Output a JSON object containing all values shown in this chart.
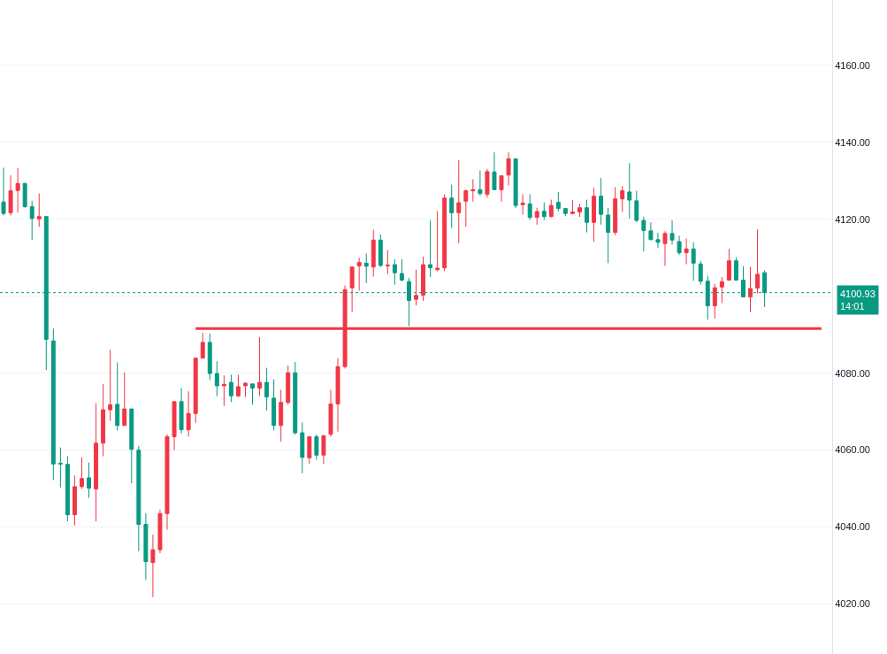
{
  "chart_data": {
    "type": "candlestick",
    "categories": [
      null,
      null,
      null,
      null,
      null,
      null,
      null,
      null,
      null,
      null,
      null,
      null,
      null,
      null,
      null,
      null,
      null,
      null,
      null,
      null,
      null,
      null,
      null,
      null,
      null,
      null,
      null,
      null,
      null,
      null,
      null,
      null,
      null,
      null,
      null,
      null,
      null,
      null,
      null,
      null,
      null,
      null,
      null,
      null,
      null,
      null,
      null,
      null,
      null,
      null,
      null,
      null,
      null,
      null,
      null,
      null,
      null,
      null,
      null,
      null,
      null,
      null,
      null,
      null,
      null,
      null,
      null,
      null,
      null,
      null,
      null,
      null,
      null,
      null,
      null,
      null,
      null,
      null,
      null,
      null,
      null,
      null,
      null,
      null,
      null,
      null,
      null,
      null,
      null,
      null,
      null,
      null,
      null,
      null,
      null,
      null,
      null,
      null,
      null,
      null,
      null,
      null,
      null,
      null,
      null,
      null,
      null,
      null,
      null,
      null,
      null,
      null,
      null,
      null,
      null,
      null,
      null
    ],
    "ohlc": [
      [
        4124.5,
        4133.4,
        4121.0,
        4121.5
      ],
      [
        4121.7,
        4131.4,
        4121.0,
        4127.4
      ],
      [
        4127.5,
        4133.3,
        4121.7,
        4129.3
      ],
      [
        4129.3,
        4129.5,
        4123.0,
        4123.3
      ],
      [
        4123.3,
        4124.8,
        4114.6,
        4120.2
      ],
      [
        4120.1,
        4126.7,
        4118.0,
        4120.7
      ],
      [
        4120.7,
        4120.7,
        4080.8,
        4088.8
      ],
      [
        4088.4,
        4091.6,
        4052.2,
        4056.4
      ],
      [
        4056.6,
        4060.7,
        4050.3,
        4056.4
      ],
      [
        4056.3,
        4058.4,
        4041.5,
        4043.2
      ],
      [
        4043.2,
        4053.4,
        4040.4,
        4050.5
      ],
      [
        4050.5,
        4058.1,
        4049.9,
        4052.6
      ],
      [
        4052.8,
        4056.8,
        4047.6,
        4050.1
      ],
      [
        4049.9,
        4072.2,
        4041.5,
        4061.8
      ],
      [
        4061.8,
        4077.2,
        4058.4,
        4070.5
      ],
      [
        4070.5,
        4086.1,
        4067.6,
        4071.8
      ],
      [
        4071.9,
        4082.8,
        4065.1,
        4066.4
      ],
      [
        4066.4,
        4080.2,
        4066.4,
        4070.7
      ],
      [
        4070.7,
        4070.7,
        4051.4,
        4060.2
      ],
      [
        4060.0,
        4061.1,
        4033.7,
        4040.7
      ],
      [
        4040.7,
        4043.6,
        4026.3,
        4031.0
      ],
      [
        4030.8,
        4038.0,
        4021.8,
        4034.1
      ],
      [
        4034.1,
        4044.5,
        4033.2,
        4043.5
      ],
      [
        4043.5,
        4064.1,
        4039.3,
        4063.5
      ],
      [
        4063.5,
        4072.6,
        4060.0,
        4072.6
      ],
      [
        4072.6,
        4076.2,
        4064.3,
        4065.3
      ],
      [
        4065.3,
        4075.3,
        4063.5,
        4069.5
      ],
      [
        4069.5,
        4084.0,
        4067.1,
        4083.9
      ],
      [
        4083.9,
        4090.5,
        4083.9,
        4088.0
      ],
      [
        4088.0,
        4090.3,
        4078.2,
        4079.9
      ],
      [
        4079.9,
        4083.1,
        4074.0,
        4076.7
      ],
      [
        4076.7,
        4079.4,
        4071.5,
        4077.1
      ],
      [
        4077.6,
        4079.6,
        4072.5,
        4074.1
      ],
      [
        4074.1,
        4079.6,
        4073.8,
        4076.5
      ],
      [
        4076.7,
        4077.6,
        4073.8,
        4077.4
      ],
      [
        4077.2,
        4077.2,
        4071.8,
        4076.1
      ],
      [
        4076.1,
        4089.4,
        4074.1,
        4077.6
      ],
      [
        4077.6,
        4081.4,
        4070.3,
        4073.8
      ],
      [
        4073.5,
        4078.4,
        4065.1,
        4066.4
      ],
      [
        4066.4,
        4075.7,
        4062.2,
        4072.4
      ],
      [
        4072.4,
        4082.0,
        4071.8,
        4080.1
      ],
      [
        4080.1,
        4082.9,
        4064.0,
        4064.5
      ],
      [
        4064.5,
        4067.2,
        4054.0,
        4058.1
      ],
      [
        4058.0,
        4063.5,
        4056.4,
        4063.5
      ],
      [
        4063.5,
        4064.1,
        4057.5,
        4058.7
      ],
      [
        4058.7,
        4064.0,
        4056.4,
        4063.7
      ],
      [
        4064.1,
        4075.7,
        4063.5,
        4072.0
      ],
      [
        4072.0,
        4083.9,
        4064.8,
        4081.7
      ],
      [
        4081.7,
        4102.8,
        4081.2,
        4101.7
      ],
      [
        4102.2,
        4107.6,
        4095.9,
        4107.6
      ],
      [
        4107.9,
        4110.0,
        4101.5,
        4108.8
      ],
      [
        4108.6,
        4111.1,
        4103.4,
        4107.8
      ],
      [
        4107.6,
        4117.3,
        4105.1,
        4114.6
      ],
      [
        4114.6,
        4116.1,
        4107.6,
        4108.0
      ],
      [
        4107.9,
        4112.0,
        4105.7,
        4108.1
      ],
      [
        4108.2,
        4109.6,
        4103.0,
        4106.1
      ],
      [
        4105.9,
        4109.6,
        4103.9,
        4104.2
      ],
      [
        4103.8,
        4104.8,
        4092.2,
        4098.9
      ],
      [
        4099.2,
        4106.9,
        4097.6,
        4100.2
      ],
      [
        4100.3,
        4110.3,
        4098.8,
        4108.2
      ],
      [
        4108.2,
        4119.7,
        4105.0,
        4107.4
      ],
      [
        4106.9,
        4122.1,
        4106.5,
        4107.3
      ],
      [
        4107.4,
        4126.5,
        4106.5,
        4125.5
      ],
      [
        4125.5,
        4129.0,
        4117.7,
        4121.7
      ],
      [
        4121.7,
        4135.4,
        4113.8,
        4124.3
      ],
      [
        4124.7,
        4127.7,
        4118.0,
        4127.4
      ],
      [
        4127.4,
        4130.4,
        4124.6,
        4127.7
      ],
      [
        4127.7,
        4132.7,
        4126.1,
        4126.7
      ],
      [
        4126.5,
        4133.1,
        4125.6,
        4132.4
      ],
      [
        4132.3,
        4137.4,
        4127.7,
        4127.7
      ],
      [
        4127.7,
        4131.3,
        4124.6,
        4131.3
      ],
      [
        4131.5,
        4137.4,
        4128.8,
        4135.7
      ],
      [
        4135.7,
        4135.7,
        4122.9,
        4123.6
      ],
      [
        4123.8,
        4126.5,
        4121.2,
        4124.2
      ],
      [
        4124.0,
        4126.5,
        4119.8,
        4120.5
      ],
      [
        4120.5,
        4123.0,
        4118.6,
        4122.0
      ],
      [
        4122.1,
        4124.4,
        4119.8,
        4120.7
      ],
      [
        4120.7,
        4125.1,
        4120.5,
        4123.6
      ],
      [
        4124.4,
        4127.1,
        4122.1,
        4122.8
      ],
      [
        4122.8,
        4122.8,
        4120.8,
        4121.5
      ],
      [
        4121.5,
        4125.0,
        4121.3,
        4121.9
      ],
      [
        4121.9,
        4124.0,
        4120.6,
        4123.0
      ],
      [
        4123.0,
        4125.1,
        4116.6,
        4119.2
      ],
      [
        4119.2,
        4128.2,
        4114.2,
        4126.0
      ],
      [
        4126.0,
        4130.7,
        4118.6,
        4121.3
      ],
      [
        4121.1,
        4123.0,
        4108.6,
        4116.6
      ],
      [
        4116.6,
        4128.4,
        4115.9,
        4125.3
      ],
      [
        4125.3,
        4128.6,
        4121.9,
        4127.4
      ],
      [
        4127.1,
        4134.6,
        4120.2,
        4125.0
      ],
      [
        4124.8,
        4127.4,
        4119.2,
        4119.7
      ],
      [
        4119.7,
        4120.7,
        4111.7,
        4117.1
      ],
      [
        4117.0,
        4119.2,
        4114.6,
        4114.7
      ],
      [
        4114.7,
        4116.5,
        4112.6,
        4114.0
      ],
      [
        4113.7,
        4116.9,
        4107.9,
        4116.3
      ],
      [
        4116.3,
        4119.7,
        4113.4,
        4114.6
      ],
      [
        4114.2,
        4115.7,
        4110.7,
        4111.3
      ],
      [
        4111.3,
        4115.0,
        4108.3,
        4112.3
      ],
      [
        4112.3,
        4114.0,
        4104.0,
        4108.6
      ],
      [
        4108.4,
        4109.2,
        4103.0,
        4103.9
      ],
      [
        4103.9,
        4105.3,
        4093.9,
        4097.5
      ],
      [
        4097.5,
        4103.2,
        4094.2,
        4102.2
      ],
      [
        4102.4,
        4105.0,
        4098.2,
        4103.8
      ],
      [
        4104.2,
        4112.3,
        4104.0,
        4109.2
      ],
      [
        4109.2,
        4110.1,
        4104.0,
        4104.2
      ],
      [
        4104.2,
        4107.8,
        4099.8,
        4099.8
      ],
      [
        4099.8,
        4107.6,
        4095.9,
        4102.0
      ],
      [
        4102.1,
        4117.4,
        4100.7,
        4105.7
      ],
      [
        4106.1,
        4106.7,
        4097.2,
        4100.93
      ],
      null,
      null,
      null,
      null,
      null,
      null,
      null,
      null,
      null
    ],
    "colors": [
      "#089981",
      "#f23645",
      "#f23645",
      "#089981",
      "#089981",
      "#f23645",
      "#089981",
      "#089981",
      "#089981",
      "#089981",
      "#f23645",
      "#f23645",
      "#089981",
      "#f23645",
      "#f23645",
      "#f23645",
      "#089981",
      "#f23645",
      "#089981",
      "#089981",
      "#089981",
      "#f23645",
      "#f23645",
      "#f23645",
      "#f23645",
      "#089981",
      "#f23645",
      "#f23645",
      "#f23645",
      "#089981",
      "#089981",
      "#f23645",
      "#089981",
      "#f23645",
      "#f23645",
      "#089981",
      "#f23645",
      "#089981",
      "#089981",
      "#f23645",
      "#f23645",
      "#089981",
      "#089981",
      "#f23645",
      "#089981",
      "#f23645",
      "#f23645",
      "#f23645",
      "#f23645",
      "#f23645",
      "#f23645",
      "#089981",
      "#f23645",
      "#089981",
      "#f23645",
      "#089981",
      "#089981",
      "#089981",
      "#f23645",
      "#f23645",
      "#089981",
      "#f23645",
      "#f23645",
      "#089981",
      "#f23645",
      "#f23645",
      "#f23645",
      "#089981",
      "#f23645",
      "#089981",
      "#f23645",
      "#f23645",
      "#089981",
      "#f23645",
      "#089981",
      "#f23645",
      "#089981",
      "#f23645",
      "#089981",
      "#089981",
      "#f23645",
      "#f23645",
      "#089981",
      "#f23645",
      "#089981",
      "#089981",
      "#f23645",
      "#f23645",
      "#089981",
      "#089981",
      "#089981",
      "#089981",
      "#089981",
      "#f23645",
      "#089981",
      "#089981",
      "#f23645",
      "#089981",
      "#089981",
      "#089981",
      "#f23645",
      "#f23645",
      "#f23645",
      "#089981",
      "#089981",
      "#f23645",
      "#f23645",
      "#089981",
      null,
      null,
      null,
      null,
      null,
      null,
      null,
      null,
      null
    ],
    "series": [
      {
        "type": "line",
        "color": "#f23645",
        "values": [
          null,
          null,
          null,
          null,
          null,
          null,
          null,
          null,
          null,
          null,
          null,
          null,
          null,
          null,
          null,
          null,
          null,
          null,
          null,
          null,
          null,
          null,
          null,
          null,
          null,
          null,
          null,
          4091.6,
          4091.6,
          4091.6,
          4091.6,
          4091.6,
          4091.6,
          4091.6,
          4091.6,
          4091.6,
          4091.6,
          4091.6,
          4091.6,
          4091.6,
          4091.6,
          4091.6,
          4091.6,
          4091.6,
          4091.6,
          4091.6,
          4091.6,
          4091.6,
          4091.6,
          4091.6,
          4091.6,
          4091.6,
          4091.6,
          4091.6,
          4091.6,
          4091.6,
          4091.6,
          4091.6,
          4091.6,
          4091.6,
          4091.6,
          4091.6,
          4091.6,
          4091.6,
          4091.6,
          4091.6,
          4091.6,
          4091.6,
          4091.6,
          4091.6,
          4091.6,
          4091.6,
          4091.6,
          4091.6,
          4091.6,
          4091.6,
          4091.6,
          4091.6,
          4091.6,
          4091.6,
          4091.6,
          4091.6,
          4091.6,
          4091.6,
          4091.6,
          4091.6,
          4091.6,
          4091.6,
          4091.6,
          4091.6,
          4091.6,
          4091.6,
          4091.6,
          4091.6,
          4091.6,
          4091.6,
          4091.6,
          4091.6,
          4091.6,
          4091.6,
          4091.6,
          4091.6,
          4091.6,
          4091.6,
          4091.6,
          4091.6,
          4091.6,
          4091.6,
          4091.6,
          4091.6,
          4091.6,
          4091.6,
          4091.6,
          4091.6,
          4091.6,
          4091.6,
          null
        ]
      }
    ],
    "ylim": [
      4007,
      4177
    ],
    "yticks": [
      {
        "value": 4020,
        "label": "4020.00"
      },
      {
        "value": 4040,
        "label": "4040.00"
      },
      {
        "value": 4060,
        "label": "4060.00"
      },
      {
        "value": 4080,
        "label": "4080.00"
      },
      {
        "value": 4100,
        "label": null
      },
      {
        "value": 4120,
        "label": "4120.00"
      },
      {
        "value": 4140,
        "label": "4140.00"
      },
      {
        "value": 4160,
        "label": "4160.00"
      }
    ],
    "ref_lines": [
      {
        "axis": "y",
        "value": 4100.93,
        "label": "4100.93\n14:01",
        "color": "#089981",
        "line_style": "dotted"
      }
    ],
    "grid": "y",
    "tick_labels": "y"
  }
}
